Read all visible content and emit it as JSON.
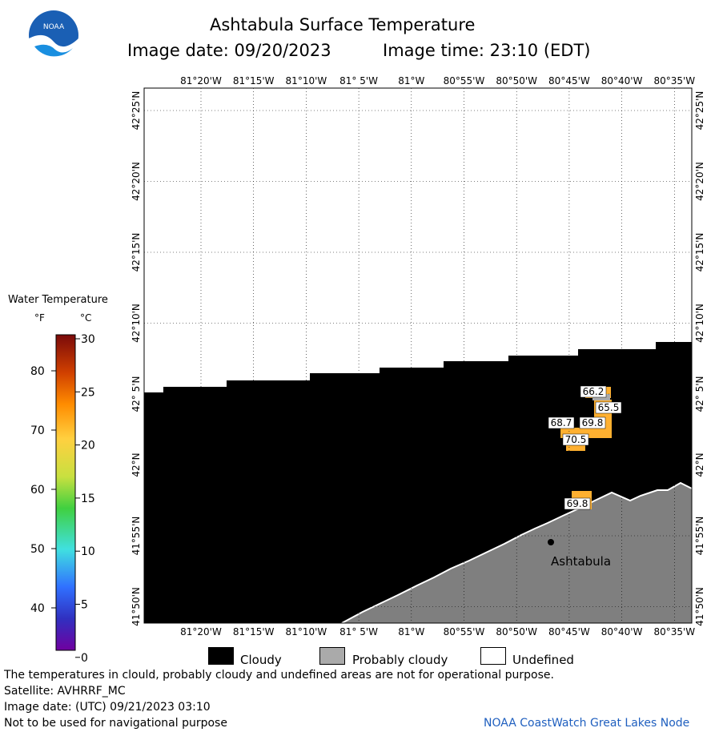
{
  "header": {
    "logo_text": "NOAA",
    "title": "Ashtabula Surface Temperature",
    "image_date": "Image date: 09/20/2023",
    "image_time": "Image time: 23:10 (EDT)"
  },
  "legend": {
    "title": "Water Temperature",
    "unit_f": "°F",
    "unit_c": "°C",
    "f_ticks": [
      "80",
      "70",
      "60",
      "50",
      "40"
    ],
    "c_ticks": [
      "30",
      "25",
      "20",
      "15",
      "10",
      "5",
      "0"
    ],
    "colors": [
      "#7a0a0a",
      "#d04000",
      "#ff8c00",
      "#ffd040",
      "#c8e040",
      "#40d040",
      "#40e0e0",
      "#3070ff",
      "#3030c0",
      "#7000a0"
    ]
  },
  "map": {
    "lon_labels": [
      "81°20'W",
      "81°15'W",
      "81°10'W",
      "81° 5'W",
      "81°W",
      "80°55'W",
      "80°50'W",
      "80°45'W",
      "80°40'W",
      "80°35'W"
    ],
    "lat_labels": [
      "42°25'N",
      "42°20'N",
      "42°15'N",
      "42°10'N",
      "42° 5'N",
      "42°N",
      "41°55'N",
      "41°50'N"
    ],
    "city": "Ashtabula",
    "temps": [
      "66.2",
      "65.5",
      "68.7",
      "69.8",
      "70.5",
      "69.8"
    ]
  },
  "key": {
    "cloudy": "Cloudy",
    "probably_cloudy": "Probably cloudy",
    "undefined": "Undefined",
    "colors": {
      "cloudy": "#000000",
      "probably_cloudy": "#aaaaaa",
      "undefined": "#ffffff"
    }
  },
  "footer": {
    "disclaimer": "The temperatures in clould, probably cloudy and undefined areas are not for operational purpose.",
    "satellite": "Satellite: AVHRRF_MC",
    "utc_date": "Image date: (UTC) 09/21/2023  03:10",
    "nav_warning": "Not to be used for navigational purpose",
    "credit": "NOAA CoastWatch Great Lakes Node"
  }
}
